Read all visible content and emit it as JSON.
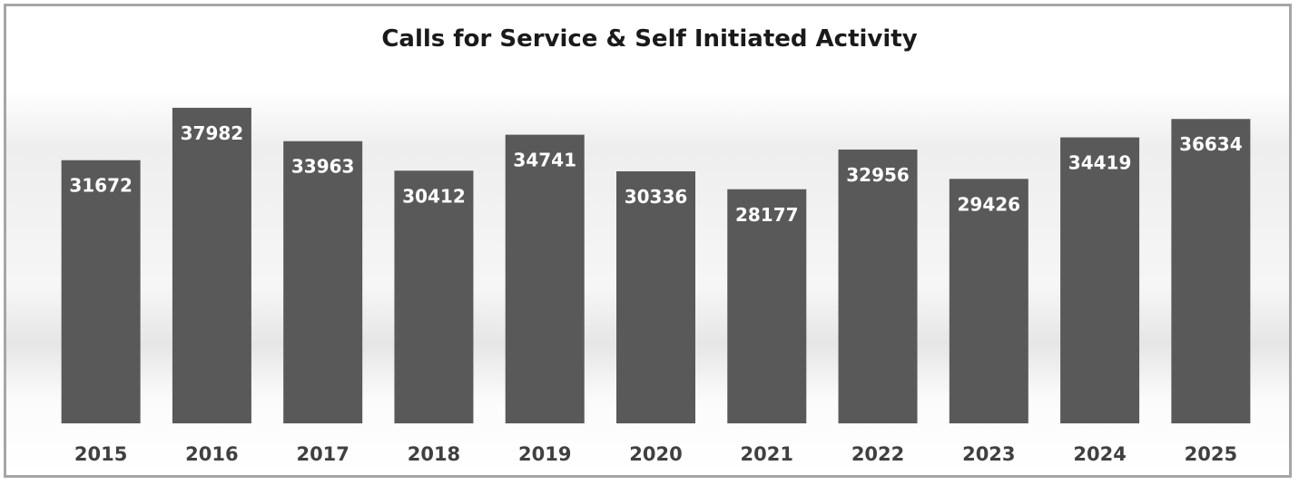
{
  "chart_data": {
    "type": "bar",
    "title": "Calls for Service & Self Initiated Activity",
    "xlabel": "",
    "ylabel": "",
    "categories": [
      "2015",
      "2016",
      "2017",
      "2018",
      "2019",
      "2020",
      "2021",
      "2022",
      "2023",
      "2024",
      "2025"
    ],
    "values": [
      31672,
      37982,
      33963,
      30412,
      34741,
      30336,
      28177,
      32956,
      29426,
      34419,
      36634
    ],
    "ylim": [
      0,
      40000
    ],
    "grid": false,
    "legend": "none",
    "bar_color": "#595959",
    "label_color": "#ffffff"
  }
}
